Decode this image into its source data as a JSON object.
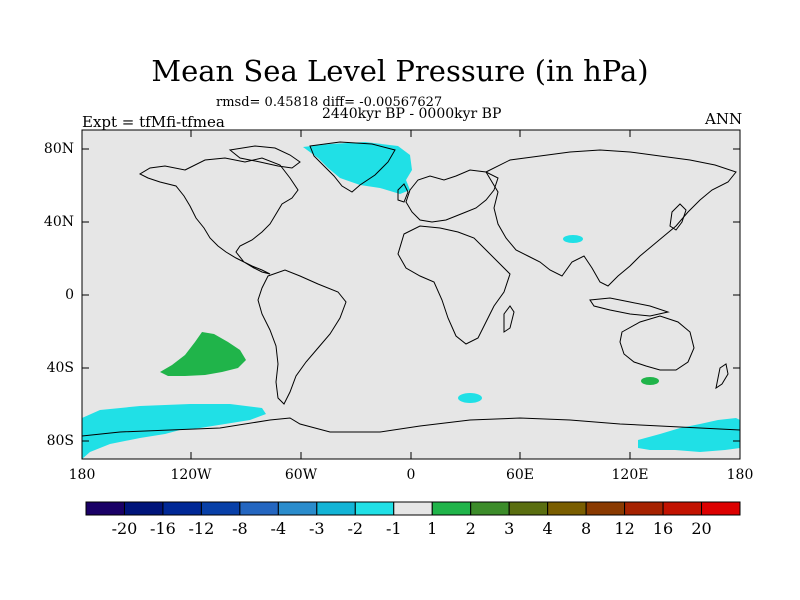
{
  "header": {
    "title": "Mean Sea Level Pressure (in hPa)",
    "stats": "rmsd= 0.45818 diff= -0.00567627",
    "period": "2440kyr BP - 0000kyr BP",
    "experiment": "Expt = tfMfi-tfmea",
    "season": "ANN"
  },
  "axes": {
    "y_ticks": [
      "80N",
      "40N",
      "0",
      "40S",
      "80S"
    ],
    "x_ticks": [
      "180",
      "120W",
      "60W",
      "0",
      "60E",
      "120E",
      "180"
    ]
  },
  "colorbar": {
    "labels": [
      "-20",
      "-16",
      "-12",
      "-8",
      "-4",
      "-3",
      "-2",
      "-1",
      "1",
      "2",
      "3",
      "4",
      "8",
      "12",
      "16",
      "20"
    ],
    "colors": [
      "#1a0066",
      "#00147a",
      "#002896",
      "#0840a8",
      "#2466c0",
      "#2a8ccc",
      "#12b4d6",
      "#20e0e6",
      "#e6e6e6",
      "#20b44a",
      "#3c8c2a",
      "#5a6e10",
      "#7a5e00",
      "#8a3a00",
      "#a62200",
      "#c21200",
      "#dc0000"
    ]
  },
  "map": {
    "background_color": "#e6e6e6",
    "coastline_color": "#000000",
    "anomaly_colors": {
      "negative_small": "#20e0e6",
      "positive_small": "#20b44a"
    }
  }
}
